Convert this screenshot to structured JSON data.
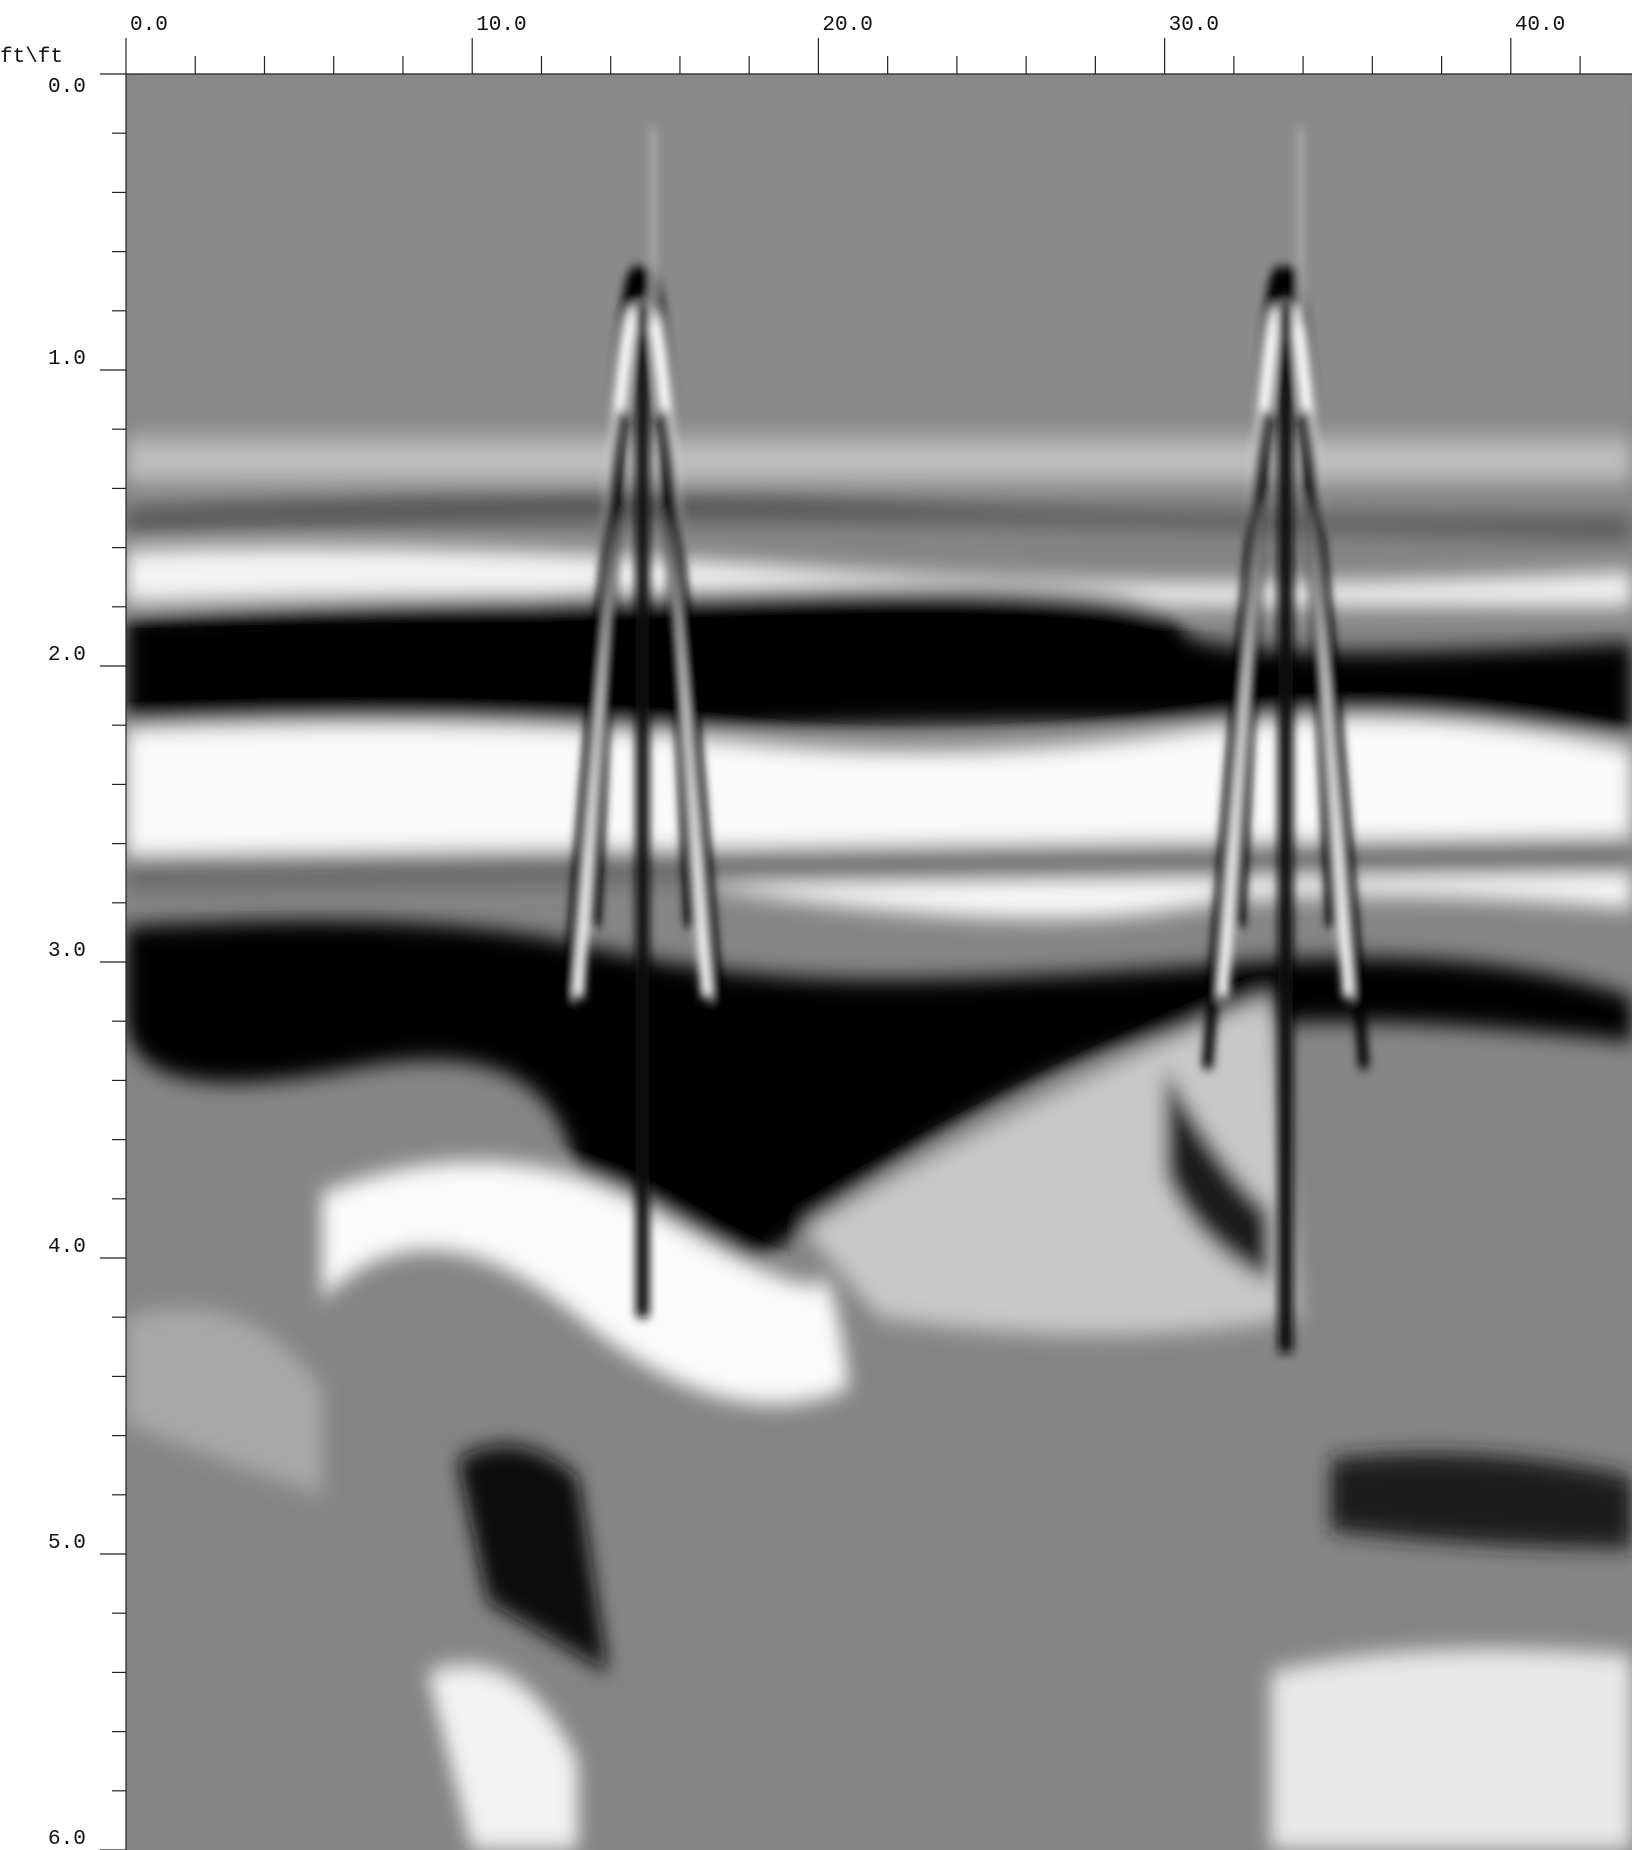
{
  "chart_data": {
    "type": "radargram",
    "corner_label": "ft\\ft",
    "xlim": [
      0,
      43.5
    ],
    "ylim": [
      0,
      6
    ],
    "xticks": [
      {
        "value": 0,
        "label": "0.0"
      },
      {
        "value": 10,
        "label": "10.0"
      },
      {
        "value": 20,
        "label": "20.0"
      },
      {
        "value": 30,
        "label": "30.0"
      },
      {
        "value": 40,
        "label": "40.0"
      }
    ],
    "xminorticks": [
      2,
      4,
      6,
      8,
      12,
      14,
      16,
      18,
      22,
      24,
      26,
      28,
      32,
      34,
      36,
      38,
      42
    ],
    "yticks": [
      {
        "value": 0,
        "label": "0.0"
      },
      {
        "value": 1,
        "label": "1.0"
      },
      {
        "value": 2,
        "label": "2.0"
      },
      {
        "value": 3,
        "label": "3.0"
      },
      {
        "value": 4,
        "label": "4.0"
      },
      {
        "value": 5,
        "label": "5.0"
      },
      {
        "value": 6,
        "label": "6.0"
      }
    ],
    "yminorticks": [
      0.2,
      0.4,
      0.6,
      0.8,
      1.2,
      1.4,
      1.6,
      1.8,
      2.2,
      2.4,
      2.6,
      2.8,
      3.2,
      3.4,
      3.6,
      3.8,
      4.2,
      4.4,
      4.6,
      4.8,
      5.2,
      5.4,
      5.6,
      5.8
    ]
  }
}
